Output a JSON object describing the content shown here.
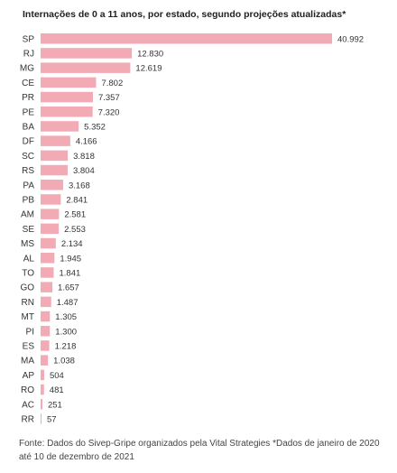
{
  "title": "Internações de 0 a 11 anos, por estado, segundo projeções atualizadas*",
  "source": "Fonte: Dados do Sivep-Gripe organizados pela Vital Strategies *Dados de janeiro de 2020 até 10 de dezembro de 2021",
  "colors": {
    "bar": "#f2aab5",
    "text": "#333333"
  },
  "chart_data": {
    "type": "bar",
    "orientation": "horizontal",
    "title": "Internações de 0 a 11 anos, por estado, segundo projeções atualizadas*",
    "categories": [
      "SP",
      "RJ",
      "MG",
      "CE",
      "PR",
      "PE",
      "BA",
      "DF",
      "SC",
      "RS",
      "PA",
      "PB",
      "AM",
      "SE",
      "MS",
      "AL",
      "TO",
      "GO",
      "RN",
      "MT",
      "PI",
      "ES",
      "MA",
      "AP",
      "RO",
      "AC",
      "RR"
    ],
    "values": [
      40992,
      12830,
      12619,
      7802,
      7357,
      7320,
      5352,
      4166,
      3818,
      3804,
      3168,
      2841,
      2581,
      2553,
      2134,
      1945,
      1841,
      1657,
      1487,
      1305,
      1300,
      1218,
      1038,
      504,
      481,
      251,
      57
    ],
    "value_labels": [
      "40.992",
      "12.830",
      "12.619",
      "7.802",
      "7.357",
      "7.320",
      "5.352",
      "4.166",
      "3.818",
      "3.804",
      "3.168",
      "2.841",
      "2.581",
      "2.553",
      "2.134",
      "1.945",
      "1.841",
      "1.657",
      "1.487",
      "1.305",
      "1.300",
      "1.218",
      "1.038",
      "504",
      "481",
      "251",
      "57"
    ],
    "xlim": [
      0,
      40992
    ],
    "grid": false,
    "legend": "none"
  }
}
